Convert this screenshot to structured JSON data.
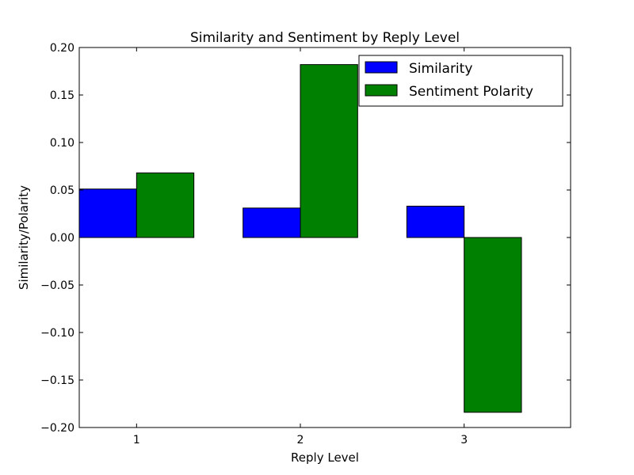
{
  "chart_data": {
    "type": "bar",
    "title": "Similarity and Sentiment by Reply Level",
    "xlabel": "Reply Level",
    "ylabel": "Similarity/Polarity",
    "categories": [
      "1",
      "2",
      "3"
    ],
    "series": [
      {
        "name": "Similarity",
        "color": "#0000ff",
        "values": [
          0.051,
          0.031,
          0.033
        ]
      },
      {
        "name": "Sentiment Polarity",
        "color": "#008000",
        "values": [
          0.068,
          0.182,
          -0.184
        ]
      }
    ],
    "ylim": [
      -0.2,
      0.2
    ],
    "yticks": [
      "0.20",
      "0.15",
      "0.10",
      "0.05",
      "0.00",
      "−0.05",
      "−0.10",
      "−0.15",
      "−0.20"
    ],
    "legend_position": "top-right",
    "grid": false
  }
}
